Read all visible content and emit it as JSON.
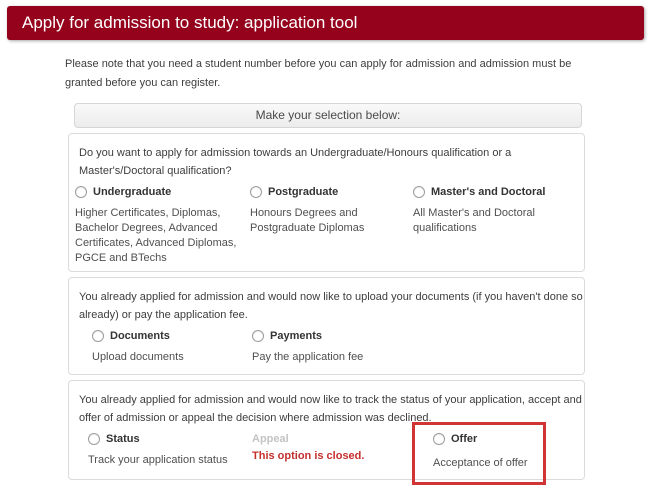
{
  "header": {
    "title": "Apply for admission to study: application tool"
  },
  "intro_lines": [
    "Please note that you need a student number before you can apply for admission and admission must be",
    "granted before you can register."
  ],
  "selection_header": "Make your selection below:",
  "sections": [
    {
      "question_lines": [
        "Do you want to apply for admission towards an Undergraduate/Honours qualification or a",
        "Master's/Doctoral qualification?"
      ],
      "options": [
        {
          "label": "Undergraduate",
          "description": "Higher Certificates, Diplomas, Bachelor Degrees, Advanced Certificates, Advanced Diplomas, PGCE and BTechs",
          "state": "enabled"
        },
        {
          "label": "Postgraduate",
          "description": "Honours Degrees and Postgraduate Diplomas",
          "state": "enabled"
        },
        {
          "label": "Master's and Doctoral",
          "description": "All Master's and Doctoral qualifications",
          "state": "enabled"
        }
      ]
    },
    {
      "question_lines": [
        "You already applied for admission and would now like to upload your documents (if you haven't done so",
        "already) or pay the application fee."
      ],
      "options": [
        {
          "label": "Documents",
          "description": "Upload documents",
          "state": "enabled"
        },
        {
          "label": "Payments",
          "description": "Pay the application fee",
          "state": "enabled"
        }
      ]
    },
    {
      "question_lines": [
        "You already applied for admission and would now like to track the status of your application, accept and",
        "offer of admission or appeal the decision where admission was declined."
      ],
      "options": [
        {
          "label": "Status",
          "description": "Track your application status",
          "state": "enabled"
        },
        {
          "label": "Appeal",
          "description": "This option is closed.",
          "state": "closed"
        },
        {
          "label": "Offer",
          "description": "Acceptance of offer",
          "state": "highlighted"
        }
      ]
    }
  ],
  "colors": {
    "header_red": "#94021c",
    "panel_border": "#dbdbdb",
    "closed_note_red": "#c4302e",
    "highlight_red": "#d13434"
  }
}
